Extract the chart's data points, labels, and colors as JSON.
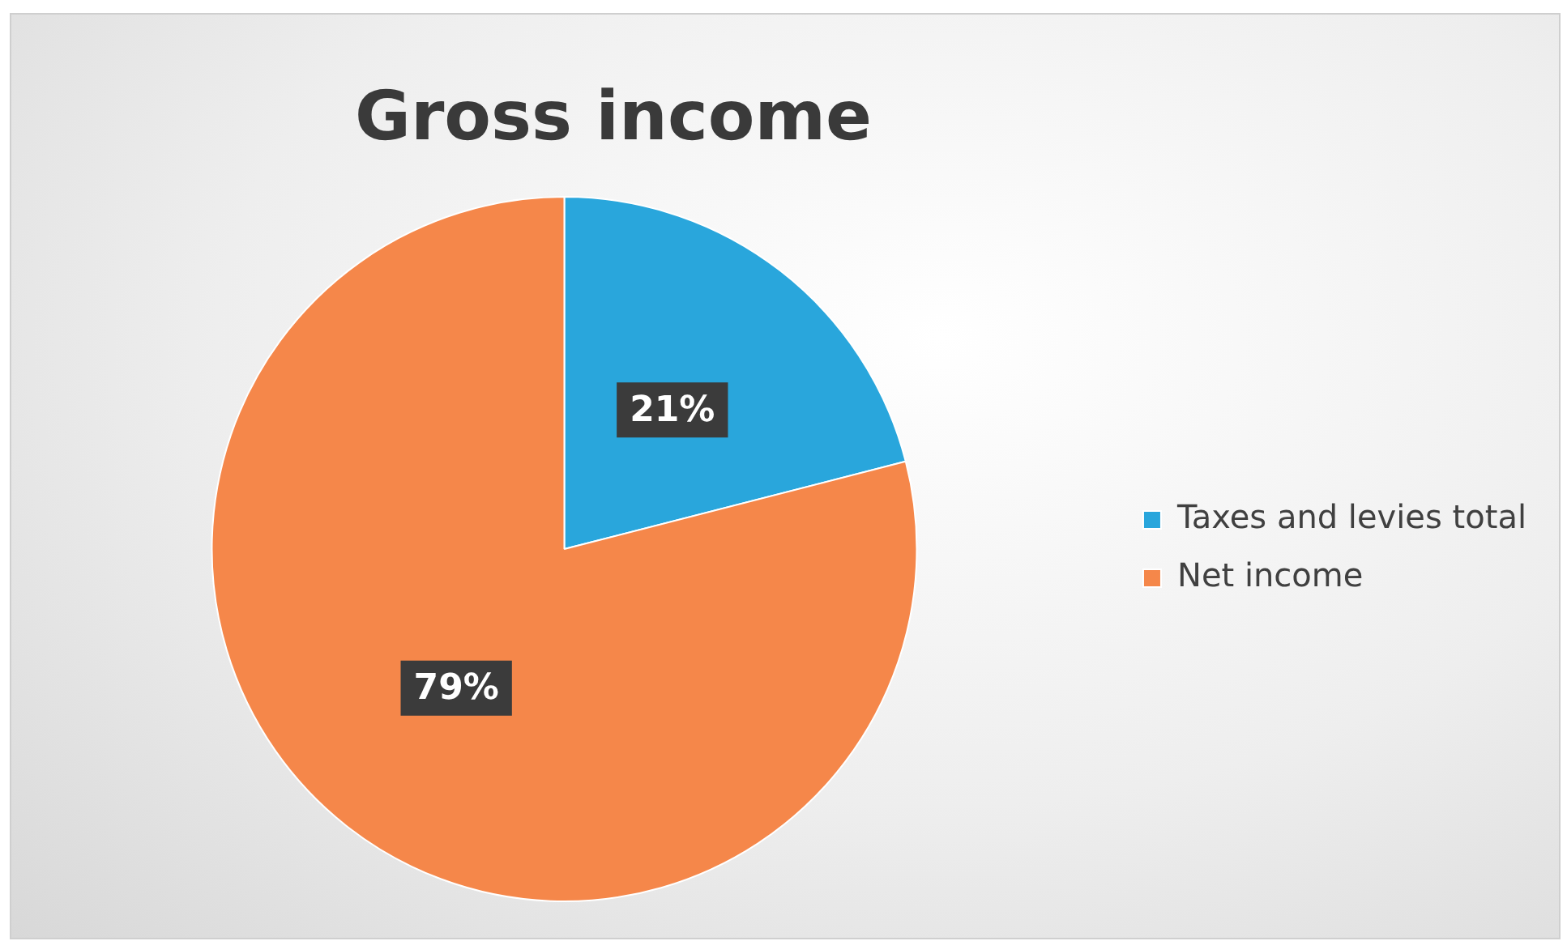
{
  "chart_data": {
    "type": "pie",
    "title": "Gross income",
    "categories": [
      "Taxes and levies total",
      "Net income"
    ],
    "values": [
      21,
      79
    ],
    "colors": [
      "#29a6dc",
      "#f5874a"
    ],
    "value_labels": [
      "21%",
      "79%"
    ],
    "legend": "right"
  }
}
